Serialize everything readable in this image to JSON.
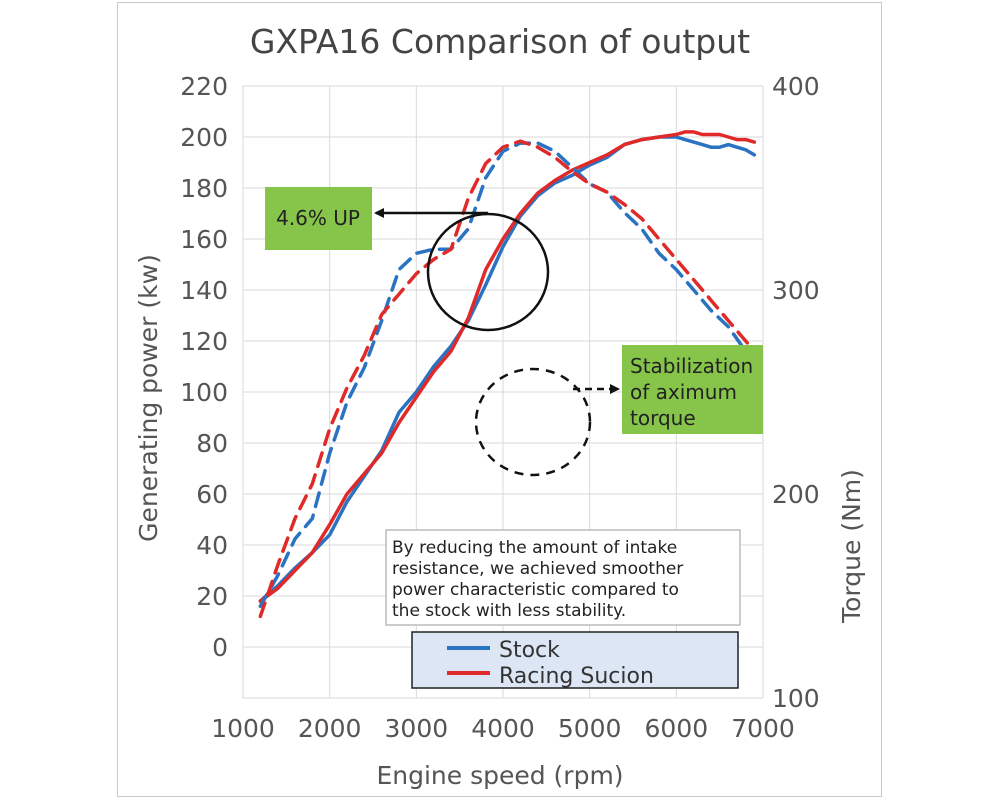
{
  "chart_data": {
    "type": "line",
    "title": "GXPA16 Comparison of output",
    "xlabel": "Engine speed (rpm)",
    "ylabel_left": "Generating power (kw)",
    "ylabel_right": "Torque (Nm)",
    "xlim": [
      1000,
      7000
    ],
    "ylim_left": [
      -20,
      220
    ],
    "ylim_right": [
      100,
      400
    ],
    "x_ticks": [
      1000,
      2000,
      3000,
      4000,
      5000,
      6000,
      7000
    ],
    "y_left_ticks": [
      0,
      20,
      40,
      60,
      80,
      100,
      120,
      140,
      160,
      180,
      200,
      220
    ],
    "y_right_ticks": [
      100,
      200,
      300,
      400
    ],
    "grid": true,
    "legend_position": "bottom-center",
    "series": [
      {
        "name": "Stock",
        "axis": "left",
        "style": "solid",
        "color": "#2a72c2",
        "x": [
          1200,
          1400,
          1600,
          1800,
          2000,
          2200,
          2400,
          2600,
          2800,
          3000,
          3200,
          3400,
          3600,
          3800,
          4000,
          4200,
          4400,
          4600,
          4800,
          5000,
          5200,
          5400,
          5600,
          5800,
          6000,
          6100,
          6200,
          6300,
          6400,
          6500,
          6600,
          6700,
          6800,
          6900
        ],
        "values": [
          18,
          24,
          31,
          37,
          44,
          57,
          67,
          77,
          92,
          100,
          110,
          118,
          128,
          142,
          157,
          169,
          177,
          182,
          185,
          189,
          192,
          197,
          199,
          200,
          200,
          199,
          198,
          197,
          196,
          196,
          197,
          196,
          195,
          193
        ]
      },
      {
        "name": "Racing Sucion",
        "axis": "left",
        "style": "solid",
        "color": "#e02a2a",
        "x": [
          1200,
          1400,
          1600,
          1800,
          2000,
          2200,
          2400,
          2600,
          2800,
          3000,
          3200,
          3400,
          3600,
          3800,
          4000,
          4200,
          4400,
          4600,
          4800,
          5000,
          5200,
          5400,
          5600,
          5800,
          6000,
          6100,
          6200,
          6300,
          6400,
          6500,
          6600,
          6700,
          6800,
          6900
        ],
        "values": [
          18,
          23,
          30,
          37,
          48,
          60,
          68,
          76,
          88,
          98,
          108,
          116,
          129,
          148,
          160,
          170,
          178,
          183,
          187,
          190,
          193,
          197,
          199,
          200,
          201,
          202,
          202,
          201,
          201,
          201,
          200,
          199,
          199,
          198
        ]
      },
      {
        "name": "Stock",
        "axis": "right",
        "style": "dashed",
        "color": "#2a72c2",
        "x": [
          1200,
          1400,
          1600,
          1800,
          2000,
          2200,
          2400,
          2600,
          2800,
          3000,
          3200,
          3400,
          3600,
          3800,
          4000,
          4200,
          4400,
          4600,
          4800,
          5000,
          5200,
          5400,
          5600,
          5800,
          6000,
          6200,
          6400,
          6600,
          6800,
          6900
        ],
        "values": [
          145,
          160,
          178,
          188,
          220,
          245,
          262,
          285,
          310,
          318,
          320,
          320,
          330,
          355,
          368,
          372,
          372,
          368,
          360,
          352,
          348,
          338,
          330,
          318,
          310,
          300,
          290,
          282,
          270,
          262
        ]
      },
      {
        "name": "Racing Sucion",
        "axis": "right",
        "style": "dashed",
        "color": "#e02a2a",
        "x": [
          1200,
          1400,
          1600,
          1800,
          2000,
          2200,
          2400,
          2600,
          2800,
          3000,
          3200,
          3400,
          3600,
          3800,
          4000,
          4200,
          4400,
          4600,
          4800,
          5000,
          5200,
          5400,
          5600,
          5800,
          6000,
          6200,
          6400,
          6600,
          6800,
          6900
        ],
        "values": [
          140,
          165,
          188,
          205,
          232,
          252,
          268,
          288,
          298,
          308,
          315,
          320,
          345,
          362,
          370,
          373,
          370,
          365,
          358,
          352,
          348,
          342,
          335,
          325,
          315,
          305,
          295,
          285,
          275,
          270
        ]
      }
    ],
    "annotations": {
      "power_up": "4.6% UP",
      "torque_note_1": "Stabilization",
      "torque_note_2": "of aximum",
      "torque_note_3": "torque",
      "note_line_1": "By reducing the amount of intake",
      "note_line_2": "resistance, we achieved smoother",
      "note_line_3": "power characteristic compared to",
      "note_line_4": "the stock with less stability."
    },
    "legend": {
      "stock_label": "Stock",
      "racing_label": "Racing Sucion"
    }
  }
}
